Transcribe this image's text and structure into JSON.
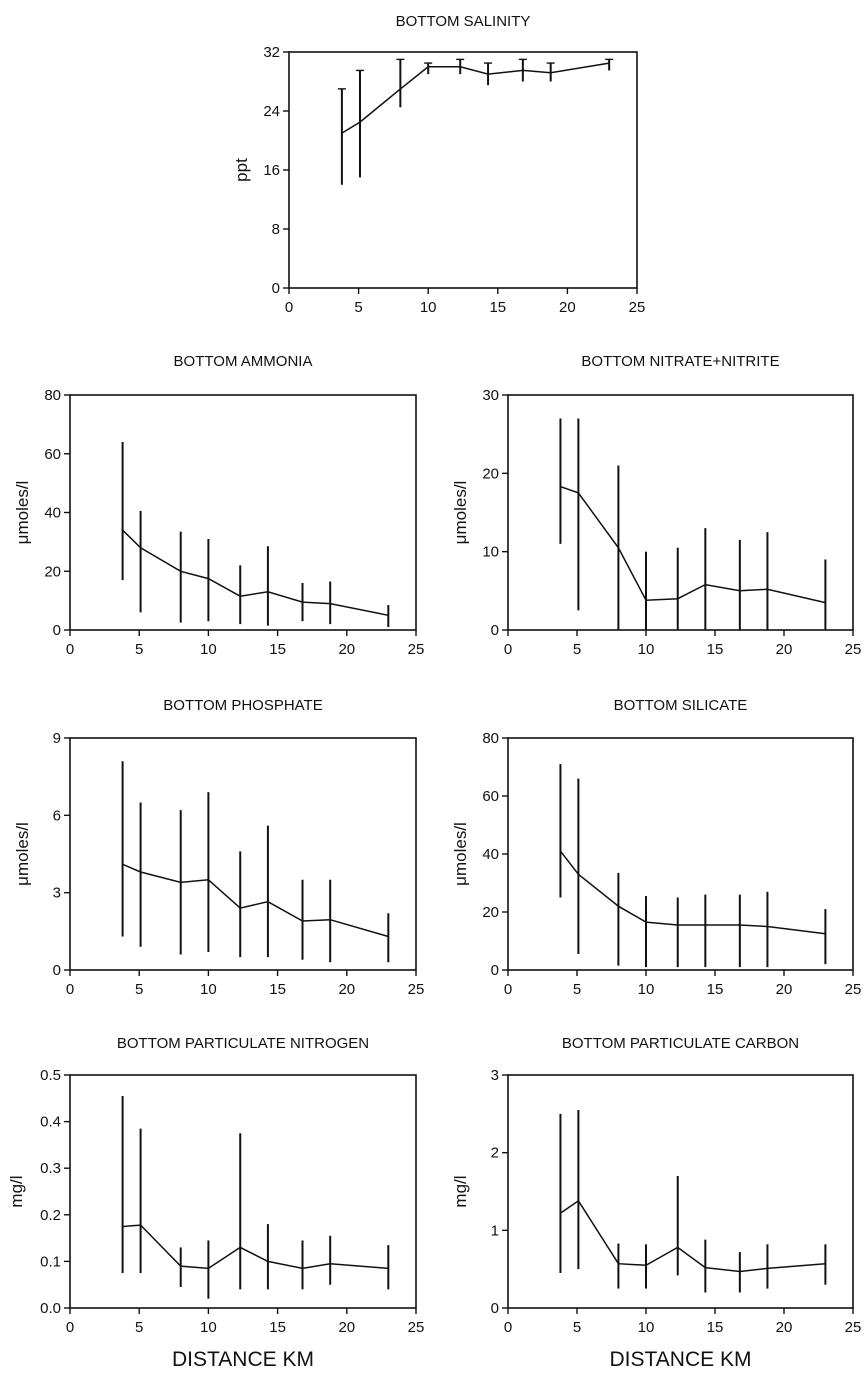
{
  "chart_data": [
    {
      "type": "line",
      "title": "BOTTOM SALINITY",
      "ylabel": "ppt",
      "xlabel": "",
      "xlim": [
        0,
        25
      ],
      "ylim": [
        0,
        32
      ],
      "xticks": [
        "0",
        "5",
        "10",
        "15",
        "20",
        "25"
      ],
      "yticks": [
        "0",
        "8",
        "16",
        "24",
        "32"
      ],
      "series": [
        {
          "x": [
            3.8,
            5.1,
            8,
            10,
            12.3,
            14.3,
            16.8,
            18.8,
            23
          ],
          "y": [
            21,
            22.5,
            27,
            30,
            30,
            29,
            29.5,
            29.2,
            30.5
          ],
          "err_low": [
            14,
            15,
            24.5,
            29,
            29,
            27.5,
            28,
            28,
            29.5
          ],
          "err_high": [
            27,
            29.5,
            31,
            30.5,
            31,
            30.5,
            31,
            30.5,
            31
          ]
        }
      ]
    },
    {
      "type": "line",
      "title": "BOTTOM AMMONIA",
      "ylabel": "μmoles/l",
      "xlabel": "",
      "xlim": [
        0,
        25
      ],
      "ylim": [
        0,
        80
      ],
      "xticks": [
        "0",
        "5",
        "10",
        "15",
        "20",
        "25"
      ],
      "yticks": [
        "0",
        "20",
        "40",
        "60",
        "80"
      ],
      "series": [
        {
          "x": [
            3.8,
            5.1,
            8,
            10,
            12.3,
            14.3,
            16.8,
            18.8,
            23
          ],
          "y": [
            34,
            28,
            20,
            17.5,
            11.5,
            13,
            9.5,
            9,
            5
          ],
          "err_low": [
            17,
            6,
            2.5,
            3,
            2,
            1.5,
            3,
            2,
            1
          ],
          "err_high": [
            64,
            40.5,
            33.5,
            31,
            22,
            28.5,
            16,
            16.5,
            8.5
          ]
        }
      ]
    },
    {
      "type": "line",
      "title": "BOTTOM NITRATE+NITRITE",
      "ylabel": "μmoles/l",
      "xlabel": "",
      "xlim": [
        0,
        25
      ],
      "ylim": [
        0,
        30
      ],
      "xticks": [
        "0",
        "5",
        "10",
        "15",
        "20",
        "25"
      ],
      "yticks": [
        "0",
        "10",
        "20",
        "30"
      ],
      "series": [
        {
          "x": [
            3.8,
            5.1,
            8,
            10,
            12.3,
            14.3,
            16.8,
            18.8,
            23
          ],
          "y": [
            18.3,
            17.5,
            10.5,
            3.8,
            4,
            5.8,
            5,
            5.2,
            3.5
          ],
          "err_low": [
            11,
            2.5,
            0,
            0,
            0,
            0,
            0,
            0,
            0
          ],
          "err_high": [
            27,
            27,
            21,
            10,
            10.5,
            13,
            11.5,
            12.5,
            9
          ]
        }
      ]
    },
    {
      "type": "line",
      "title": "BOTTOM PHOSPHATE",
      "ylabel": "μmoles/l",
      "xlabel": "",
      "xlim": [
        0,
        25
      ],
      "ylim": [
        0,
        9
      ],
      "xticks": [
        "0",
        "5",
        "10",
        "15",
        "20",
        "25"
      ],
      "yticks": [
        "0",
        "3",
        "6",
        "9"
      ],
      "series": [
        {
          "x": [
            3.8,
            5.1,
            8,
            10,
            12.3,
            14.3,
            16.8,
            18.8,
            23
          ],
          "y": [
            4.1,
            3.8,
            3.4,
            3.5,
            2.4,
            2.65,
            1.9,
            1.95,
            1.3
          ],
          "err_low": [
            1.3,
            0.9,
            0.6,
            0.7,
            0.5,
            0.5,
            0.4,
            0.3,
            0.3
          ],
          "err_high": [
            8.1,
            6.5,
            6.2,
            6.9,
            4.6,
            5.6,
            3.5,
            3.5,
            2.2
          ]
        }
      ]
    },
    {
      "type": "line",
      "title": "BOTTOM SILICATE",
      "ylabel": "μmoles/l",
      "xlabel": "",
      "xlim": [
        0,
        25
      ],
      "ylim": [
        0,
        80
      ],
      "xticks": [
        "0",
        "5",
        "10",
        "15",
        "20",
        "25"
      ],
      "yticks": [
        "0",
        "20",
        "40",
        "60",
        "80"
      ],
      "series": [
        {
          "x": [
            3.8,
            5.1,
            8,
            10,
            12.3,
            14.3,
            16.8,
            18.8,
            23
          ],
          "y": [
            41,
            33,
            22,
            16.5,
            15.5,
            15.5,
            15.5,
            15,
            12.5
          ],
          "err_low": [
            25,
            5.5,
            1.5,
            1,
            1,
            1,
            1,
            1,
            2
          ],
          "err_high": [
            71,
            66,
            33.5,
            25.5,
            25,
            26,
            26,
            27,
            21
          ]
        }
      ]
    },
    {
      "type": "line",
      "title": "BOTTOM PARTICULATE NITROGEN",
      "ylabel": "mg/l",
      "xlabel": "DISTANCE KM",
      "xlim": [
        0,
        25
      ],
      "ylim": [
        0,
        0.5
      ],
      "xticks": [
        "0",
        "5",
        "10",
        "15",
        "20",
        "25"
      ],
      "yticks": [
        "0.0",
        "0.1",
        "0.2",
        "0.3",
        "0.4",
        "0.5"
      ],
      "series": [
        {
          "x": [
            3.8,
            5.1,
            8,
            10,
            12.3,
            14.3,
            16.8,
            18.8,
            23
          ],
          "y": [
            0.175,
            0.178,
            0.09,
            0.085,
            0.13,
            0.1,
            0.085,
            0.095,
            0.085
          ],
          "err_low": [
            0.075,
            0.075,
            0.045,
            0.02,
            0.04,
            0.04,
            0.04,
            0.05,
            0.04
          ],
          "err_high": [
            0.455,
            0.385,
            0.13,
            0.145,
            0.375,
            0.18,
            0.145,
            0.155,
            0.135
          ]
        }
      ]
    },
    {
      "type": "line",
      "title": "BOTTOM PARTICULATE CARBON",
      "ylabel": "mg/l",
      "xlabel": "DISTANCE KM",
      "xlim": [
        0,
        25
      ],
      "ylim": [
        0,
        3
      ],
      "xticks": [
        "0",
        "5",
        "10",
        "15",
        "20",
        "25"
      ],
      "yticks": [
        "0",
        "1",
        "2",
        "3"
      ],
      "series": [
        {
          "x": [
            3.8,
            5.1,
            8,
            10,
            12.3,
            14.3,
            16.8,
            18.8,
            23
          ],
          "y": [
            1.22,
            1.38,
            0.57,
            0.55,
            0.78,
            0.52,
            0.47,
            0.51,
            0.57
          ],
          "err_low": [
            0.45,
            0.5,
            0.25,
            0.25,
            0.42,
            0.2,
            0.2,
            0.25,
            0.3
          ],
          "err_high": [
            2.5,
            2.55,
            0.83,
            0.82,
            1.7,
            0.88,
            0.72,
            0.82,
            0.82
          ]
        }
      ]
    }
  ]
}
